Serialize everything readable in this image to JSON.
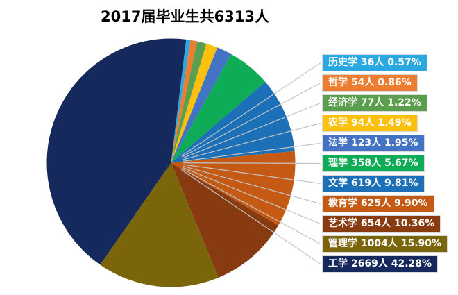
{
  "title": "2017届毕业生共6313人",
  "chart_data": {
    "type": "pie",
    "title": "2017届毕业生共6313人",
    "total": 6313,
    "unit": "人",
    "direction": "clockwise",
    "start_angle_deg": 7,
    "legend_position": "right",
    "grid": false,
    "categories": [
      "历史学",
      "哲学",
      "经济学",
      "农学",
      "法学",
      "理学",
      "文学",
      "教育学",
      "艺术学",
      "管理学",
      "工学"
    ],
    "values": [
      36,
      54,
      77,
      94,
      123,
      358,
      619,
      625,
      654,
      1004,
      2669
    ],
    "percent_labels": [
      "0.57",
      "0.86",
      "1.22",
      "1.49",
      "1.95",
      "5.67",
      "9.81",
      "9.90",
      "10.36",
      "15.90",
      "42.28"
    ],
    "colors": [
      "#29A8E1",
      "#ED7D31",
      "#5B9E4D",
      "#FEC00E",
      "#4472C4",
      "#0EAC56",
      "#1C70B8",
      "#C45A13",
      "#883A10",
      "#7A650A",
      "#16295C"
    ],
    "label_text_color": "#FFFFFF",
    "label_border_color": "#D9D9D9",
    "leader_line_color": "#C4C4C4",
    "title_color": "#000000",
    "background_color": "#FFFFFF"
  }
}
